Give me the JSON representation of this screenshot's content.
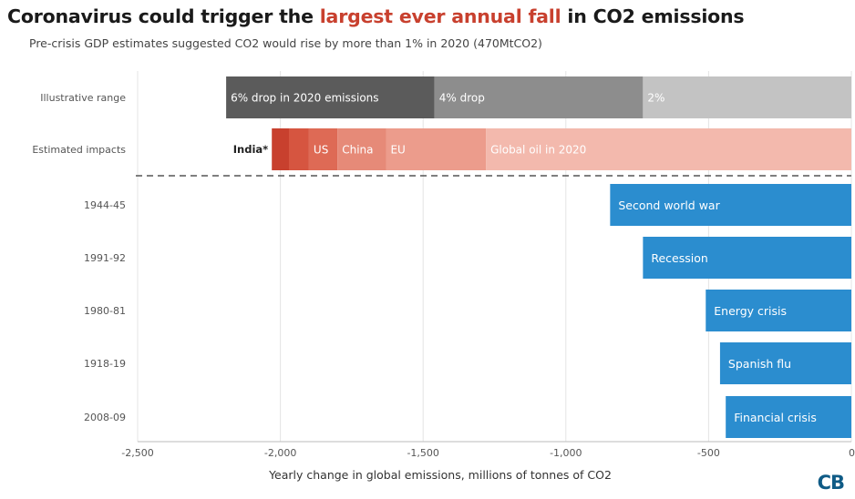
{
  "header": {
    "title_before": "Coronavirus could trigger the ",
    "title_highlight": "largest ever annual fall",
    "title_after": " in CO2 emissions",
    "subtitle": "Pre-crisis GDP estimates suggested CO2 would rise by more than 1% in 2020 (470MtCO2)"
  },
  "logo": "CB",
  "colors": {
    "highlight": "#c8402e",
    "historical_bar": "#2b8dcf",
    "grid": "#e4e4e4",
    "divider": "#555555"
  },
  "chart_data": {
    "type": "bar",
    "orientation": "horizontal",
    "xlabel": "Yearly change in global emissions, millions of tonnes of CO2",
    "xlim": [
      -2500,
      0
    ],
    "xticks": [
      -2500,
      -2000,
      -1500,
      -1000,
      -500,
      0
    ],
    "xtick_labels": [
      "-2,500",
      "-2,000",
      "-1,500",
      "-1,000",
      "-500",
      "0"
    ],
    "grid": true,
    "rows": [
      {
        "label": "Illustrative range",
        "stacked": true,
        "segments": [
          {
            "label": "6% drop in 2020 emissions",
            "start": -2190,
            "end": -1460,
            "color": "#5b5b5b"
          },
          {
            "label": "4% drop",
            "start": -1460,
            "end": -730,
            "color": "#8d8d8d"
          },
          {
            "label": "2%",
            "start": -730,
            "end": 0,
            "color": "#c3c3c3"
          }
        ]
      },
      {
        "label": "Estimated impacts",
        "stacked": true,
        "segments": [
          {
            "label": "India*",
            "start": -2030,
            "end": -1970,
            "color": "#c8402e",
            "label_outside": true
          },
          {
            "label": "",
            "start": -1970,
            "end": -1900,
            "color": "#d65540"
          },
          {
            "label": "US",
            "start": -1900,
            "end": -1800,
            "color": "#de6a55"
          },
          {
            "label": "China",
            "start": -1800,
            "end": -1630,
            "color": "#e68a78"
          },
          {
            "label": "EU",
            "start": -1630,
            "end": -1280,
            "color": "#ec9c8c"
          },
          {
            "label": "Global oil in 2020",
            "start": -1280,
            "end": 0,
            "color": "#f3b9ad"
          }
        ]
      },
      {
        "label": "1944-45",
        "value": -845,
        "bar_label": "Second world war"
      },
      {
        "label": "1991-92",
        "value": -730,
        "bar_label": "Recession"
      },
      {
        "label": "1980-81",
        "value": -510,
        "bar_label": "Energy crisis"
      },
      {
        "label": "1918-19",
        "value": -460,
        "bar_label": "Spanish flu"
      },
      {
        "label": "2008-09",
        "value": -440,
        "bar_label": "Financial crisis"
      }
    ]
  }
}
